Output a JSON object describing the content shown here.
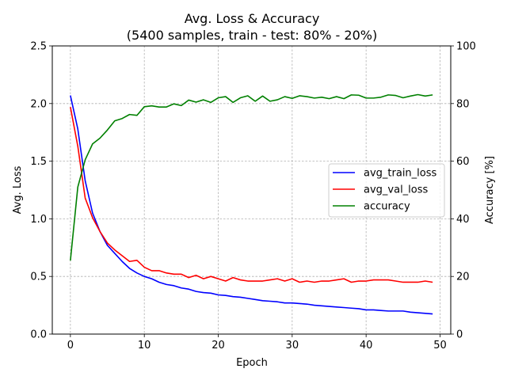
{
  "chart_data": {
    "type": "line",
    "title_line1": "Avg. Loss & Accuracy",
    "title_line2": "(5400 samples, train - test: 80% - 20%)",
    "xlabel": "Epoch",
    "ylabel_left": "Avg. Loss",
    "ylabel_right": "Accuracy [%]",
    "xlim": [
      -2.45,
      51.45
    ],
    "ylim_left": [
      0,
      2.5
    ],
    "ylim_right": [
      0,
      100
    ],
    "x_ticks": [
      0,
      10,
      20,
      30,
      40,
      50
    ],
    "x_tick_labels": [
      "0",
      "10",
      "20",
      "30",
      "40",
      "50"
    ],
    "y_left_ticks": [
      0.0,
      0.5,
      1.0,
      1.5,
      2.0,
      2.5
    ],
    "y_left_tick_labels": [
      "0.0",
      "0.5",
      "1.0",
      "1.5",
      "2.0",
      "2.5"
    ],
    "y_right_ticks": [
      0,
      20,
      40,
      60,
      80,
      100
    ],
    "y_right_tick_labels": [
      "0",
      "20",
      "40",
      "60",
      "80",
      "100"
    ],
    "grid": true,
    "legend_position": "center-right",
    "x": [
      0,
      1,
      2,
      3,
      4,
      5,
      6,
      7,
      8,
      9,
      10,
      11,
      12,
      13,
      14,
      15,
      16,
      17,
      18,
      19,
      20,
      21,
      22,
      23,
      24,
      25,
      26,
      27,
      28,
      29,
      30,
      31,
      32,
      33,
      34,
      35,
      36,
      37,
      38,
      39,
      40,
      41,
      42,
      43,
      44,
      45,
      46,
      47,
      48,
      49
    ],
    "series": [
      {
        "name": "avg_train_loss",
        "axis": "left",
        "color": "#0000ff",
        "values": [
          2.07,
          1.78,
          1.33,
          1.05,
          0.89,
          0.77,
          0.7,
          0.63,
          0.57,
          0.53,
          0.5,
          0.48,
          0.45,
          0.43,
          0.42,
          0.4,
          0.39,
          0.37,
          0.36,
          0.355,
          0.34,
          0.335,
          0.325,
          0.32,
          0.31,
          0.3,
          0.29,
          0.285,
          0.28,
          0.27,
          0.27,
          0.265,
          0.26,
          0.25,
          0.245,
          0.24,
          0.235,
          0.23,
          0.225,
          0.22,
          0.21,
          0.21,
          0.205,
          0.2,
          0.2,
          0.2,
          0.19,
          0.185,
          0.18,
          0.175
        ]
      },
      {
        "name": "avg_val_loss",
        "axis": "left",
        "color": "#ff0000",
        "values": [
          1.97,
          1.63,
          1.18,
          1.01,
          0.89,
          0.79,
          0.73,
          0.68,
          0.63,
          0.64,
          0.58,
          0.55,
          0.55,
          0.53,
          0.52,
          0.52,
          0.49,
          0.51,
          0.48,
          0.5,
          0.48,
          0.46,
          0.49,
          0.47,
          0.46,
          0.46,
          0.46,
          0.47,
          0.48,
          0.46,
          0.48,
          0.45,
          0.46,
          0.45,
          0.46,
          0.46,
          0.47,
          0.48,
          0.45,
          0.46,
          0.46,
          0.47,
          0.47,
          0.47,
          0.46,
          0.45,
          0.45,
          0.45,
          0.46,
          0.45
        ]
      },
      {
        "name": "accuracy",
        "axis": "right",
        "color": "#008000",
        "values": [
          25.5,
          51.0,
          60.5,
          66.0,
          68.0,
          70.8,
          74.0,
          74.8,
          76.2,
          75.9,
          78.9,
          79.2,
          78.8,
          78.8,
          79.9,
          79.3,
          81.2,
          80.5,
          81.3,
          80.4,
          82.0,
          82.4,
          80.4,
          82.0,
          82.7,
          80.8,
          82.6,
          80.8,
          81.3,
          82.4,
          81.8,
          82.7,
          82.4,
          81.9,
          82.2,
          81.7,
          82.4,
          81.7,
          83.0,
          82.9,
          81.9,
          81.9,
          82.2,
          83.0,
          82.8,
          82.0,
          82.6,
          83.1,
          82.6,
          83.0
        ]
      }
    ]
  }
}
